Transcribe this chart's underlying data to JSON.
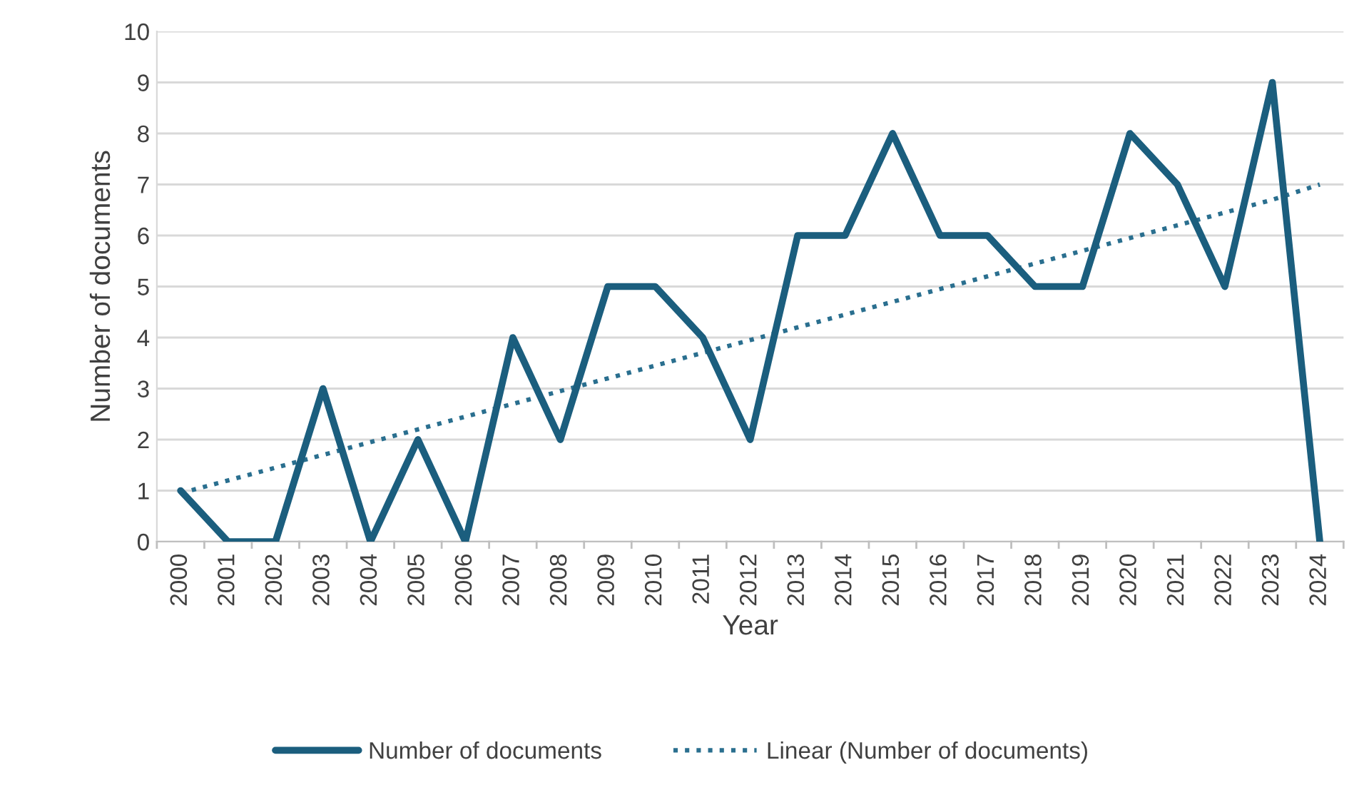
{
  "chart_data": {
    "type": "line",
    "xlabel": "Year",
    "ylabel": "Number of documents",
    "categories": [
      "2000",
      "2001",
      "2002",
      "2003",
      "2004",
      "2005",
      "2006",
      "2007",
      "2008",
      "2009",
      "2010",
      "2011",
      "2012",
      "2013",
      "2014",
      "2015",
      "2016",
      "2017",
      "2018",
      "2019",
      "2020",
      "2021",
      "2022",
      "2023",
      "2024"
    ],
    "series": [
      {
        "name": "Number of documents",
        "color": "#1b5e7e",
        "line_style": "solid",
        "values": [
          1,
          0,
          0,
          3,
          0,
          2,
          0,
          4,
          2,
          5,
          5,
          4,
          2,
          6,
          6,
          8,
          6,
          6,
          5,
          5,
          8,
          7,
          5,
          9,
          0
        ]
      },
      {
        "name": "Linear (Number of documents)",
        "color": "#2a6f8f",
        "line_style": "dotted",
        "values": [
          0.95,
          1.2,
          1.45,
          1.7,
          1.95,
          2.2,
          2.45,
          2.7,
          2.95,
          3.2,
          3.45,
          3.7,
          3.95,
          4.2,
          4.45,
          4.7,
          4.95,
          5.2,
          5.45,
          5.7,
          5.95,
          6.2,
          6.45,
          6.7,
          7.0
        ]
      }
    ],
    "ylim": [
      0,
      10
    ],
    "yticks": [
      0,
      1,
      2,
      3,
      4,
      5,
      6,
      7,
      8,
      9,
      10
    ],
    "grid": "y",
    "legend": "bottom",
    "marker": "none"
  }
}
